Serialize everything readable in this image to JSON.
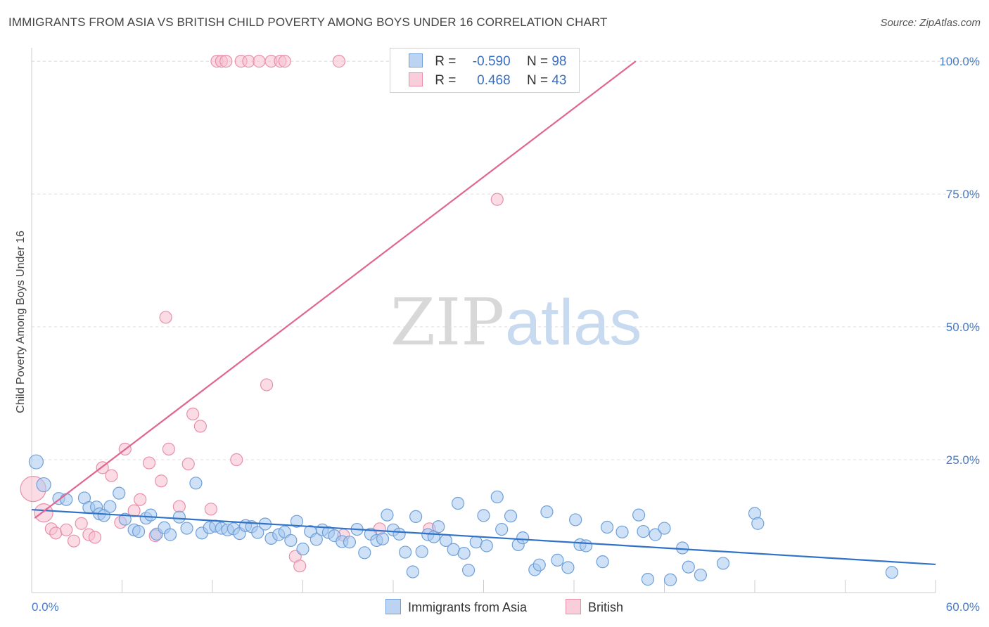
{
  "header": {
    "title": "IMMIGRANTS FROM ASIA VS BRITISH CHILD POVERTY AMONG BOYS UNDER 16 CORRELATION CHART",
    "source": "Source: ZipAtlas.com"
  },
  "legend": {
    "rows": [
      {
        "r_label": "R =",
        "r_value": "-0.590",
        "n_label": "N =",
        "n_value": "98"
      },
      {
        "r_label": "R =",
        "r_value": "0.468",
        "n_label": "N =",
        "n_value": "43"
      }
    ]
  },
  "watermark": {
    "zip": "ZIP",
    "atlas": "atlas"
  },
  "colors": {
    "asia_fill": "#a8c8f0",
    "asia_stroke": "#6fa0d8",
    "asia_line": "#2f72c8",
    "british_fill": "#f7bfd0",
    "british_stroke": "#e890ab",
    "british_line": "#e06690",
    "tick_label": "#4a7bc4",
    "grid": "#dddddd"
  },
  "chart_data": {
    "type": "scatter",
    "title": "IMMIGRANTS FROM ASIA VS BRITISH CHILD POVERTY AMONG BOYS UNDER 16 CORRELATION CHART",
    "ylabel": "Child Poverty Among Boys Under 16",
    "xlabel": "",
    "xlim": [
      0,
      60
    ],
    "ylim": [
      0,
      102
    ],
    "x_tick_labels": [
      "0.0%",
      "60.0%"
    ],
    "y_ticks": [
      25,
      50,
      75,
      100
    ],
    "y_tick_labels": [
      "25.0%",
      "50.0%",
      "75.0%",
      "100.0%"
    ],
    "grid": true,
    "legend_position": "bottom",
    "series": [
      {
        "name": "Immigrants from Asia",
        "r": -0.59,
        "n": 98,
        "trend": {
          "x": [
            0,
            60
          ],
          "y": [
            15.6,
            5.3
          ]
        },
        "points": [
          [
            0.3,
            24.6
          ],
          [
            0.8,
            20.3
          ],
          [
            1.8,
            17.7
          ],
          [
            2.3,
            17.5
          ],
          [
            3.5,
            17.8
          ],
          [
            3.8,
            16.0
          ],
          [
            4.3,
            16.1
          ],
          [
            4.5,
            14.8
          ],
          [
            4.8,
            14.5
          ],
          [
            5.2,
            16.2
          ],
          [
            5.8,
            18.7
          ],
          [
            6.2,
            13.8
          ],
          [
            6.8,
            11.8
          ],
          [
            7.1,
            11.5
          ],
          [
            7.6,
            14.0
          ],
          [
            7.9,
            14.6
          ],
          [
            8.3,
            11.0
          ],
          [
            8.8,
            12.2
          ],
          [
            9.2,
            10.9
          ],
          [
            9.8,
            14.2
          ],
          [
            10.3,
            12.1
          ],
          [
            10.9,
            20.6
          ],
          [
            11.3,
            11.2
          ],
          [
            11.8,
            12.2
          ],
          [
            12.2,
            12.5
          ],
          [
            12.6,
            12.1
          ],
          [
            13.0,
            11.8
          ],
          [
            13.4,
            12.0
          ],
          [
            13.8,
            11.1
          ],
          [
            14.2,
            12.6
          ],
          [
            14.6,
            12.4
          ],
          [
            15.0,
            11.3
          ],
          [
            15.5,
            12.9
          ],
          [
            15.9,
            10.2
          ],
          [
            16.4,
            10.9
          ],
          [
            16.8,
            11.4
          ],
          [
            17.2,
            9.8
          ],
          [
            17.6,
            13.4
          ],
          [
            18.0,
            8.2
          ],
          [
            18.5,
            11.5
          ],
          [
            18.9,
            10.0
          ],
          [
            19.3,
            11.8
          ],
          [
            19.7,
            11.3
          ],
          [
            20.1,
            10.7
          ],
          [
            20.6,
            9.6
          ],
          [
            21.1,
            9.5
          ],
          [
            21.6,
            11.9
          ],
          [
            22.1,
            7.5
          ],
          [
            22.5,
            11.0
          ],
          [
            22.9,
            9.8
          ],
          [
            23.3,
            10.1
          ],
          [
            23.6,
            14.6
          ],
          [
            24.0,
            11.8
          ],
          [
            24.4,
            11.0
          ],
          [
            24.8,
            7.6
          ],
          [
            25.3,
            3.9
          ],
          [
            25.5,
            14.3
          ],
          [
            25.9,
            7.7
          ],
          [
            26.3,
            10.9
          ],
          [
            26.7,
            10.5
          ],
          [
            27.0,
            12.4
          ],
          [
            27.5,
            9.8
          ],
          [
            28.0,
            8.1
          ],
          [
            28.3,
            16.8
          ],
          [
            28.7,
            7.4
          ],
          [
            29.0,
            4.2
          ],
          [
            29.5,
            9.5
          ],
          [
            30.0,
            14.5
          ],
          [
            30.2,
            8.8
          ],
          [
            30.9,
            18.0
          ],
          [
            31.2,
            11.9
          ],
          [
            31.8,
            14.4
          ],
          [
            32.3,
            9.0
          ],
          [
            32.6,
            10.3
          ],
          [
            33.4,
            4.3
          ],
          [
            33.7,
            5.2
          ],
          [
            34.2,
            15.2
          ],
          [
            34.9,
            6.1
          ],
          [
            35.6,
            4.7
          ],
          [
            36.1,
            13.7
          ],
          [
            36.4,
            9.0
          ],
          [
            36.8,
            8.8
          ],
          [
            37.9,
            5.8
          ],
          [
            38.2,
            12.3
          ],
          [
            39.2,
            11.4
          ],
          [
            40.3,
            14.6
          ],
          [
            40.6,
            11.5
          ],
          [
            40.9,
            2.5
          ],
          [
            41.4,
            10.9
          ],
          [
            42.0,
            12.1
          ],
          [
            42.4,
            2.4
          ],
          [
            43.2,
            8.4
          ],
          [
            43.6,
            4.8
          ],
          [
            44.4,
            3.3
          ],
          [
            45.9,
            5.5
          ],
          [
            48.0,
            14.9
          ],
          [
            48.2,
            13.0
          ],
          [
            57.1,
            3.8
          ]
        ]
      },
      {
        "name": "British",
        "r": 0.468,
        "n": 43,
        "trend": {
          "x": [
            0.2,
            40.1
          ],
          "y": [
            14.0,
            100.0
          ]
        },
        "points": [
          [
            0.1,
            19.5
          ],
          [
            0.8,
            15.0
          ],
          [
            1.3,
            12.0
          ],
          [
            1.6,
            11.2
          ],
          [
            2.3,
            11.8
          ],
          [
            2.8,
            9.7
          ],
          [
            3.3,
            13.0
          ],
          [
            3.8,
            10.9
          ],
          [
            4.2,
            10.4
          ],
          [
            4.7,
            23.5
          ],
          [
            5.3,
            22.0
          ],
          [
            5.9,
            13.2
          ],
          [
            6.2,
            27.0
          ],
          [
            6.8,
            15.4
          ],
          [
            7.2,
            17.5
          ],
          [
            7.8,
            24.4
          ],
          [
            8.2,
            10.7
          ],
          [
            8.6,
            21.0
          ],
          [
            8.9,
            51.8
          ],
          [
            9.1,
            27.0
          ],
          [
            9.8,
            16.2
          ],
          [
            10.4,
            24.2
          ],
          [
            10.7,
            33.6
          ],
          [
            11.2,
            31.3
          ],
          [
            11.9,
            15.7
          ],
          [
            12.3,
            100.0
          ],
          [
            12.6,
            100.0
          ],
          [
            12.9,
            100.0
          ],
          [
            13.6,
            25.0
          ],
          [
            13.9,
            100.0
          ],
          [
            14.4,
            100.0
          ],
          [
            15.1,
            100.0
          ],
          [
            15.6,
            39.1
          ],
          [
            15.9,
            100.0
          ],
          [
            16.5,
            100.0
          ],
          [
            16.8,
            100.0
          ],
          [
            17.5,
            6.8
          ],
          [
            17.8,
            5.0
          ],
          [
            20.4,
            100.0
          ],
          [
            20.7,
            10.8
          ],
          [
            23.1,
            12.0
          ],
          [
            26.4,
            12.0
          ],
          [
            30.9,
            74.0
          ]
        ]
      }
    ]
  }
}
